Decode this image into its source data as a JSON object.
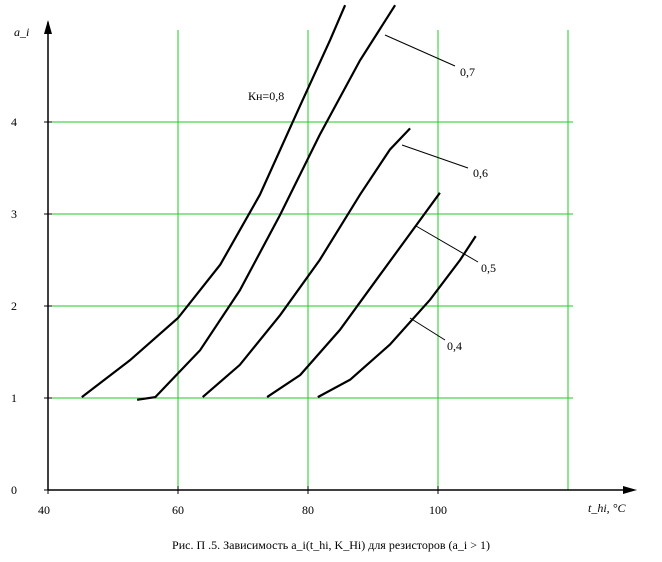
{
  "chart_data": {
    "type": "line",
    "caption": "Рис. П .5.  Зависимость a_i(t_hi, K_Hi) для резисторов (a_i > 1)",
    "y_label": "a_i",
    "x_label": "t_hi, °C",
    "xlim": [
      40,
      130
    ],
    "ylim": [
      0,
      5
    ],
    "xticks": [
      40,
      60,
      80,
      100
    ],
    "yticks": [
      0,
      1,
      2,
      3,
      4
    ],
    "xgrid": [
      60,
      80,
      100,
      120
    ],
    "ygrid": [
      1,
      2,
      3,
      4
    ],
    "grid": true,
    "grid_color": "#22cc22",
    "color": "#000000",
    "series": [
      {
        "name": "Кн=0,8",
        "x": [
          45.2,
          52.6,
          60,
          66.5,
          72.6,
          78.8,
          83.4,
          85.7
        ],
        "values": [
          1.01,
          1.41,
          1.87,
          2.45,
          3.21,
          4.18,
          4.89,
          5.27
        ]
      },
      {
        "name": "0,7",
        "x": [
          53.7,
          56.5,
          63.4,
          69.5,
          75.7,
          81.8,
          88,
          93.4
        ],
        "values": [
          0.98,
          1.01,
          1.52,
          2.17,
          2.99,
          3.86,
          4.67,
          5.27
        ]
      },
      {
        "name": "0,6",
        "x": [
          63.8,
          69.5,
          75.7,
          81.8,
          88,
          92.6,
          95.7
        ],
        "values": [
          1.01,
          1.36,
          1.9,
          2.5,
          3.21,
          3.7,
          3.93
        ]
      },
      {
        "name": "0,5",
        "x": [
          73.7,
          78.8,
          84.9,
          91.1,
          97.2,
          100.3
        ],
        "values": [
          1.01,
          1.25,
          1.74,
          2.34,
          2.93,
          3.23
        ]
      },
      {
        "name": "0,4",
        "x": [
          81.5,
          86.5,
          92.6,
          98.8,
          103.4,
          105.8
        ],
        "values": [
          1.01,
          1.2,
          1.58,
          2.07,
          2.5,
          2.76
        ]
      }
    ]
  }
}
